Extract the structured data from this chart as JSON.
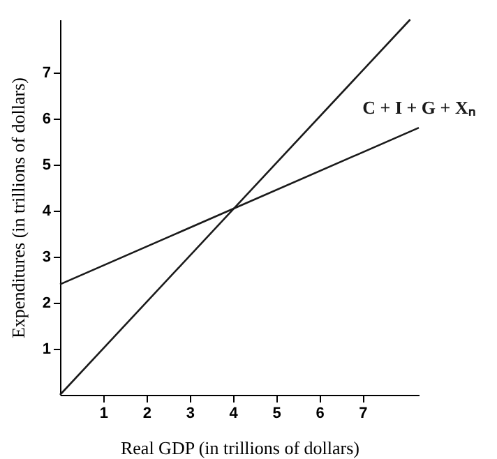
{
  "chart_data": {
    "type": "line",
    "xlabel": "Real GDP (in trillions of dollars)",
    "ylabel": "Expenditures (in trillions of dollars)",
    "xlim": [
      0,
      8.3
    ],
    "ylim": [
      0,
      8.15
    ],
    "xticks": [
      1,
      2,
      3,
      4,
      5,
      6,
      7
    ],
    "yticks": [
      1,
      2,
      3,
      4,
      5,
      6,
      7
    ],
    "grid": false,
    "marker": "none",
    "line_style": "solid",
    "series": [
      {
        "color": "#1a1a1a",
        "x": [
          0,
          8.1
        ],
        "values": [
          0,
          8.15
        ]
      },
      {
        "name": "C + I + G + Xₙ",
        "color": "#1a1a1a",
        "x": [
          0,
          8.3
        ],
        "values": [
          2.4,
          5.8
        ]
      }
    ]
  }
}
